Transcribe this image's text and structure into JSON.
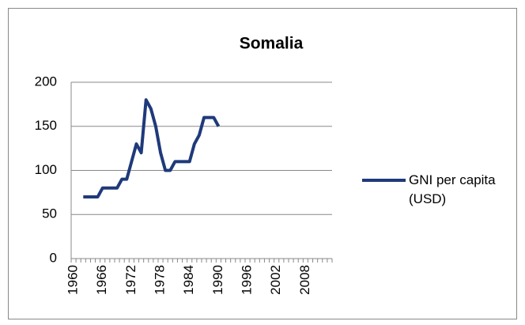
{
  "chart_data": {
    "type": "line",
    "title": "Somalia",
    "categories": [
      "1960",
      null,
      null,
      null,
      null,
      null,
      "1966",
      null,
      null,
      null,
      null,
      null,
      "1972",
      null,
      null,
      null,
      null,
      null,
      "1978",
      null,
      null,
      null,
      null,
      null,
      "1984",
      null,
      null,
      null,
      null,
      null,
      "1990",
      null,
      null,
      null,
      null,
      null,
      "1996",
      null,
      null,
      null,
      null,
      null,
      "2002",
      null,
      null,
      null,
      null,
      null,
      "2008",
      null,
      null,
      null,
      null,
      null
    ],
    "series": [
      {
        "name": "GNI per capita (USD)",
        "color": "#1f3a7a",
        "values": [
          null,
          null,
          70,
          70,
          70,
          70,
          80,
          80,
          80,
          80,
          90,
          90,
          110,
          130,
          120,
          180,
          170,
          150,
          120,
          100,
          100,
          110,
          110,
          110,
          110,
          130,
          140,
          160,
          160,
          160,
          150,
          null,
          null,
          null,
          null,
          null,
          null,
          null,
          null,
          null,
          null,
          null,
          null,
          null,
          null,
          null,
          null,
          null,
          null,
          null,
          null,
          null,
          null,
          null
        ]
      }
    ],
    "ylim": [
      0,
      200
    ],
    "yticks": [
      0,
      50,
      100,
      150,
      200
    ],
    "grid": true,
    "legend": "right"
  }
}
